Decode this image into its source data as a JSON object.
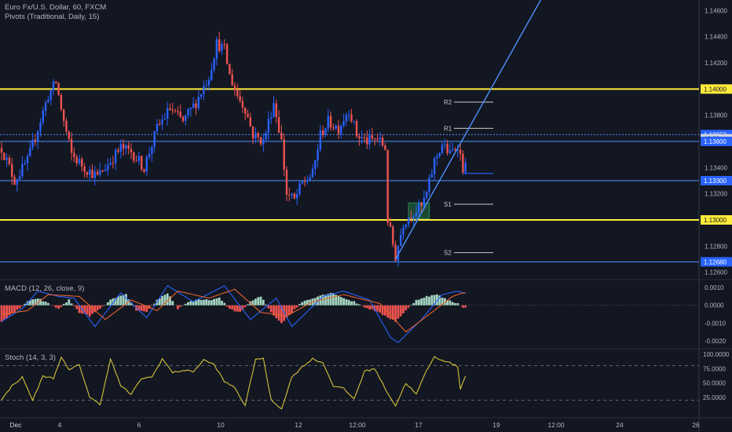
{
  "header": {
    "symbol_line": "Euro Fx/U.S. Dollar, 60, FXCM",
    "pivots_line": "Pivots (Traditional, Daily, 15)"
  },
  "macd_label": "MACD (12, 26, close, 9)",
  "stoch_label": "Stoch (14, 3, 3)",
  "colors": {
    "background": "#131722",
    "up": "#2962ff",
    "down": "#ef5350",
    "level": "#ffeb3b",
    "trend": "#4d90fe",
    "macd_line": "#2962ff",
    "signal_line": "#e5622d",
    "hist_up": "#a5d6c2",
    "hist_down": "#ef5350",
    "stoch": "#d4c238"
  },
  "chart_data": [
    {
      "type": "candlestick",
      "ylim": [
        1.1255,
        1.1468
      ],
      "y_ticks": [
        "1.14600",
        "1.14400",
        "1.14200",
        "1.14000",
        "1.13800",
        "1.13600",
        "1.13400",
        "1.13200",
        "1.13000",
        "1.12800",
        "1.12600"
      ],
      "x_ticks": [
        "Dec",
        "4",
        "6",
        "10",
        "12",
        "12:00",
        "17",
        "19",
        "12:00",
        "24",
        "26"
      ],
      "price_labels": [
        {
          "value": 1.14,
          "text": "1.14000",
          "style": "yellow"
        },
        {
          "value": 1.13652,
          "text": "1.13652",
          "style": "blue"
        },
        {
          "value": 1.1362,
          "text": "48:28",
          "style": "dark"
        },
        {
          "value": 1.136,
          "text": "1.13600",
          "style": "blue"
        },
        {
          "value": 1.133,
          "text": "1.13300",
          "style": "blue"
        },
        {
          "value": 1.13,
          "text": "1.13000",
          "style": "yellow"
        },
        {
          "value": 1.1268,
          "text": "1.12680",
          "style": "blue"
        }
      ],
      "horizontal_lines": [
        {
          "value": 1.14,
          "color": "yellow"
        },
        {
          "value": 1.13,
          "color": "yellow"
        },
        {
          "value": 1.13652,
          "color": "blue-dotted"
        },
        {
          "value": 1.136,
          "color": "blue"
        },
        {
          "value": 1.133,
          "color": "blue"
        },
        {
          "value": 1.1268,
          "color": "blue"
        }
      ],
      "pivots": [
        {
          "label": "R2",
          "value": 1.139
        },
        {
          "label": "R1",
          "value": 1.137
        },
        {
          "label": "S1",
          "value": 1.1312
        },
        {
          "label": "S2",
          "value": 1.1275
        }
      ],
      "anchors": [
        {
          "bar": 0,
          "price": 1.1355
        },
        {
          "bar": 5,
          "price": 1.133
        },
        {
          "bar": 10,
          "price": 1.1345
        },
        {
          "bar": 14,
          "price": 1.137
        },
        {
          "bar": 18,
          "price": 1.1395
        },
        {
          "bar": 21,
          "price": 1.1405
        },
        {
          "bar": 24,
          "price": 1.1375
        },
        {
          "bar": 27,
          "price": 1.135
        },
        {
          "bar": 32,
          "price": 1.134
        },
        {
          "bar": 37,
          "price": 1.1333
        },
        {
          "bar": 42,
          "price": 1.1345
        },
        {
          "bar": 46,
          "price": 1.1355
        },
        {
          "bar": 50,
          "price": 1.1352
        },
        {
          "bar": 55,
          "price": 1.134
        },
        {
          "bar": 60,
          "price": 1.137
        },
        {
          "bar": 65,
          "price": 1.1385
        },
        {
          "bar": 70,
          "price": 1.1375
        },
        {
          "bar": 75,
          "price": 1.139
        },
        {
          "bar": 80,
          "price": 1.141
        },
        {
          "bar": 83,
          "price": 1.1435
        },
        {
          "bar": 86,
          "price": 1.143
        },
        {
          "bar": 88,
          "price": 1.141
        },
        {
          "bar": 91,
          "price": 1.1395
        },
        {
          "bar": 94,
          "price": 1.1385
        },
        {
          "bar": 97,
          "price": 1.1365
        },
        {
          "bar": 101,
          "price": 1.136
        },
        {
          "bar": 105,
          "price": 1.139
        },
        {
          "bar": 108,
          "price": 1.136
        },
        {
          "bar": 110,
          "price": 1.132
        },
        {
          "bar": 113,
          "price": 1.1315
        },
        {
          "bar": 116,
          "price": 1.1328
        },
        {
          "bar": 120,
          "price": 1.1335
        },
        {
          "bar": 123,
          "price": 1.1365
        },
        {
          "bar": 126,
          "price": 1.1375
        },
        {
          "bar": 130,
          "price": 1.137
        },
        {
          "bar": 134,
          "price": 1.1385
        },
        {
          "bar": 137,
          "price": 1.1365
        },
        {
          "bar": 141,
          "price": 1.136
        },
        {
          "bar": 145,
          "price": 1.1362
        },
        {
          "bar": 148,
          "price": 1.1355
        },
        {
          "bar": 149,
          "price": 1.13
        },
        {
          "bar": 152,
          "price": 1.1272
        },
        {
          "bar": 155,
          "price": 1.1298
        },
        {
          "bar": 158,
          "price": 1.1305
        },
        {
          "bar": 162,
          "price": 1.131
        },
        {
          "bar": 164,
          "price": 1.132
        },
        {
          "bar": 167,
          "price": 1.1345
        },
        {
          "bar": 170,
          "price": 1.1358
        },
        {
          "bar": 173,
          "price": 1.135
        },
        {
          "bar": 176,
          "price": 1.1358
        },
        {
          "bar": 178,
          "price": 1.134
        }
      ],
      "trend_line": {
        "from": {
          "bar": 152,
          "price": 1.127
        },
        "to": {
          "bar": 208,
          "price": 1.1468
        }
      },
      "shaded_zone": {
        "bar_start": 157,
        "bar_end": 165,
        "price_low": 1.1301,
        "price_high": 1.1313
      }
    },
    {
      "type": "macd",
      "title": "MACD (12, 26, close, 9)",
      "ylim": [
        -0.0024,
        0.0014
      ],
      "y_ticks": [
        "0.0010",
        "0.0000",
        "-0.0010",
        "-0.0020"
      ],
      "hist_anchors": [
        {
          "bar": 0,
          "value": -0.0009
        },
        {
          "bar": 5,
          "value": -0.0004
        },
        {
          "bar": 10,
          "value": 0.0002
        },
        {
          "bar": 14,
          "value": 0.0004
        },
        {
          "bar": 18,
          "value": 0.0001
        },
        {
          "bar": 22,
          "value": -0.0002
        },
        {
          "bar": 26,
          "value": 0.0003
        },
        {
          "bar": 30,
          "value": -0.0004
        },
        {
          "bar": 34,
          "value": -0.0006
        },
        {
          "bar": 38,
          "value": -0.0002
        },
        {
          "bar": 43,
          "value": 0.0004
        },
        {
          "bar": 48,
          "value": 0.0006
        },
        {
          "bar": 52,
          "value": -0.0003
        },
        {
          "bar": 56,
          "value": -0.0004
        },
        {
          "bar": 60,
          "value": 0.0003
        },
        {
          "bar": 64,
          "value": 0.0007
        },
        {
          "bar": 68,
          "value": -0.0002
        },
        {
          "bar": 72,
          "value": 0.0002
        },
        {
          "bar": 76,
          "value": 0.0003
        },
        {
          "bar": 80,
          "value": 0.0003
        },
        {
          "bar": 84,
          "value": 0.0004
        },
        {
          "bar": 88,
          "value": -0.0002
        },
        {
          "bar": 92,
          "value": -0.0004
        },
        {
          "bar": 96,
          "value": 0.0002
        },
        {
          "bar": 100,
          "value": 0.0005
        },
        {
          "bar": 104,
          "value": -0.0004
        },
        {
          "bar": 108,
          "value": -0.001
        },
        {
          "bar": 112,
          "value": -0.0004
        },
        {
          "bar": 116,
          "value": 0.0002
        },
        {
          "bar": 120,
          "value": 0.0004
        },
        {
          "bar": 124,
          "value": 0.0006
        },
        {
          "bar": 128,
          "value": 0.0007
        },
        {
          "bar": 132,
          "value": 0.0004
        },
        {
          "bar": 136,
          "value": 0.0002
        },
        {
          "bar": 140,
          "value": -0.0001
        },
        {
          "bar": 144,
          "value": -0.0003
        },
        {
          "bar": 148,
          "value": -0.0006
        },
        {
          "bar": 152,
          "value": -0.0009
        },
        {
          "bar": 156,
          "value": -0.0003
        },
        {
          "bar": 160,
          "value": 0.0003
        },
        {
          "bar": 164,
          "value": 0.0005
        },
        {
          "bar": 168,
          "value": 0.0006
        },
        {
          "bar": 172,
          "value": 0.0003
        },
        {
          "bar": 176,
          "value": 0.0001
        },
        {
          "bar": 178,
          "value": -0.0001
        }
      ],
      "macd_anchors": [
        {
          "bar": 0,
          "value": -0.0009
        },
        {
          "bar": 8,
          "value": -0.0002
        },
        {
          "bar": 14,
          "value": 0.0008
        },
        {
          "bar": 22,
          "value": 0.0005
        },
        {
          "bar": 28,
          "value": 0.0004
        },
        {
          "bar": 36,
          "value": -0.0012
        },
        {
          "bar": 46,
          "value": 0.0007
        },
        {
          "bar": 56,
          "value": -0.0007
        },
        {
          "bar": 64,
          "value": 0.0011
        },
        {
          "bar": 74,
          "value": 0.0002
        },
        {
          "bar": 86,
          "value": 0.0011
        },
        {
          "bar": 96,
          "value": -0.0008
        },
        {
          "bar": 106,
          "value": 0.0004
        },
        {
          "bar": 112,
          "value": -0.0012
        },
        {
          "bar": 124,
          "value": 0.0005
        },
        {
          "bar": 132,
          "value": 0.0008
        },
        {
          "bar": 142,
          "value": 0.0003
        },
        {
          "bar": 150,
          "value": -0.0018
        },
        {
          "bar": 153,
          "value": -0.0021
        },
        {
          "bar": 162,
          "value": -0.0008
        },
        {
          "bar": 170,
          "value": 0.0006
        },
        {
          "bar": 176,
          "value": 0.0008
        },
        {
          "bar": 178,
          "value": 0.0007
        }
      ],
      "signal_anchors": [
        {
          "bar": 0,
          "value": -0.0005
        },
        {
          "bar": 10,
          "value": -0.0003
        },
        {
          "bar": 18,
          "value": 0.0006
        },
        {
          "bar": 30,
          "value": 0.0005
        },
        {
          "bar": 40,
          "value": -0.0008
        },
        {
          "bar": 50,
          "value": 0.0003
        },
        {
          "bar": 60,
          "value": -0.0003
        },
        {
          "bar": 68,
          "value": 0.0008
        },
        {
          "bar": 80,
          "value": 0.0004
        },
        {
          "bar": 90,
          "value": 0.0009
        },
        {
          "bar": 100,
          "value": -0.0004
        },
        {
          "bar": 110,
          "value": -0.0006
        },
        {
          "bar": 120,
          "value": 0.0002
        },
        {
          "bar": 132,
          "value": 0.0006
        },
        {
          "bar": 146,
          "value": 0.0001
        },
        {
          "bar": 156,
          "value": -0.0015
        },
        {
          "bar": 166,
          "value": -0.0004
        },
        {
          "bar": 174,
          "value": 0.0005
        },
        {
          "bar": 178,
          "value": 0.0007
        }
      ]
    },
    {
      "type": "stochastic",
      "title": "Stoch (14, 3, 3)",
      "ylim": [
        0,
        100
      ],
      "y_ticks": [
        "100.0000",
        "75.0000",
        "50.0000",
        "25.0000"
      ],
      "bands": [
        80,
        20
      ],
      "anchors": [
        {
          "bar": 0,
          "value": 20
        },
        {
          "bar": 4,
          "value": 45
        },
        {
          "bar": 8,
          "value": 60
        },
        {
          "bar": 12,
          "value": 20
        },
        {
          "bar": 16,
          "value": 62
        },
        {
          "bar": 20,
          "value": 58
        },
        {
          "bar": 23,
          "value": 95
        },
        {
          "bar": 26,
          "value": 72
        },
        {
          "bar": 30,
          "value": 82
        },
        {
          "bar": 34,
          "value": 25
        },
        {
          "bar": 38,
          "value": 12
        },
        {
          "bar": 42,
          "value": 92
        },
        {
          "bar": 46,
          "value": 45
        },
        {
          "bar": 50,
          "value": 30
        },
        {
          "bar": 54,
          "value": 58
        },
        {
          "bar": 58,
          "value": 60
        },
        {
          "bar": 62,
          "value": 92
        },
        {
          "bar": 66,
          "value": 68
        },
        {
          "bar": 70,
          "value": 72
        },
        {
          "bar": 74,
          "value": 70
        },
        {
          "bar": 78,
          "value": 90
        },
        {
          "bar": 82,
          "value": 82
        },
        {
          "bar": 86,
          "value": 52
        },
        {
          "bar": 90,
          "value": 42
        },
        {
          "bar": 94,
          "value": 10
        },
        {
          "bar": 98,
          "value": 92
        },
        {
          "bar": 101,
          "value": 92
        },
        {
          "bar": 104,
          "value": 20
        },
        {
          "bar": 108,
          "value": 5
        },
        {
          "bar": 112,
          "value": 60
        },
        {
          "bar": 116,
          "value": 78
        },
        {
          "bar": 120,
          "value": 92
        },
        {
          "bar": 124,
          "value": 85
        },
        {
          "bar": 128,
          "value": 45
        },
        {
          "bar": 132,
          "value": 40
        },
        {
          "bar": 136,
          "value": 22
        },
        {
          "bar": 140,
          "value": 70
        },
        {
          "bar": 144,
          "value": 75
        },
        {
          "bar": 148,
          "value": 40
        },
        {
          "bar": 152,
          "value": 10
        },
        {
          "bar": 156,
          "value": 50
        },
        {
          "bar": 160,
          "value": 30
        },
        {
          "bar": 164,
          "value": 72
        },
        {
          "bar": 167,
          "value": 95
        },
        {
          "bar": 170,
          "value": 90
        },
        {
          "bar": 173,
          "value": 85
        },
        {
          "bar": 176,
          "value": 78
        },
        {
          "bar": 177,
          "value": 40
        },
        {
          "bar": 179,
          "value": 62
        }
      ]
    }
  ]
}
